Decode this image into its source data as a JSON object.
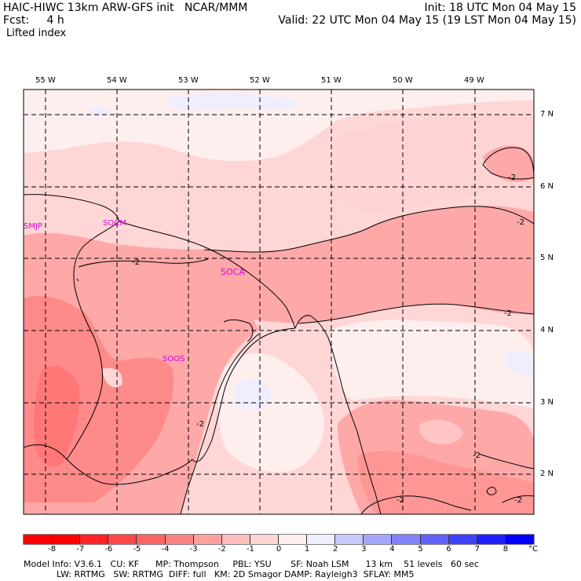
{
  "header": {
    "line1_left": "HAIC-HIWC 13km ARW-GFS init   NCAR/MMM",
    "line1_right": "Init: 18 UTC Mon 04 May 15",
    "line2_left": "Fcst:     4 h",
    "line2_right": "Valid: 22 UTC Mon 04 May 15 (19 LST Mon 04 May 15)",
    "field": "Lifted index"
  },
  "lon_labels": [
    "55 W",
    "54 W",
    "53 W",
    "52 W",
    "51 W",
    "50 W",
    "49 W"
  ],
  "lat_labels": [
    "7 N",
    "6 N",
    "5 N",
    "4 N",
    "3 N",
    "2 N"
  ],
  "stations": [
    "SMJP",
    "SOCM",
    "SOCA",
    "SOOS"
  ],
  "contour_label": "-2",
  "colorbar": {
    "ticks": [
      "-8",
      "-7",
      "-6",
      "-5",
      "-4",
      "-3",
      "-2",
      "-1",
      "0",
      "1",
      "2",
      "3",
      "4",
      "5",
      "6",
      "7",
      "8"
    ],
    "unit": "°C",
    "colors": [
      "#ff0000",
      "#ff2323",
      "#ff4646",
      "#ff6464",
      "#ff8282",
      "#ffa0a0",
      "#ffbcbc",
      "#ffd6d6",
      "#ffeeee",
      "#eeeeff",
      "#c8c8ff",
      "#a6a6ff",
      "#8282ff",
      "#6060ff",
      "#4040ff",
      "#2020ff",
      "#0000ff"
    ]
  },
  "footer": {
    "line1": "Model Info: V3.6.1   CU: KF      MP: Thompson     PBL: YSU       SF: Noah LSM      13 km    51 levels   60 sec",
    "line2": "            LW: RRTMG   SW: RRTMG  DIFF: full   KM: 2D Smagor DAMP: Rayleigh3  SFLAY: MM5"
  }
}
